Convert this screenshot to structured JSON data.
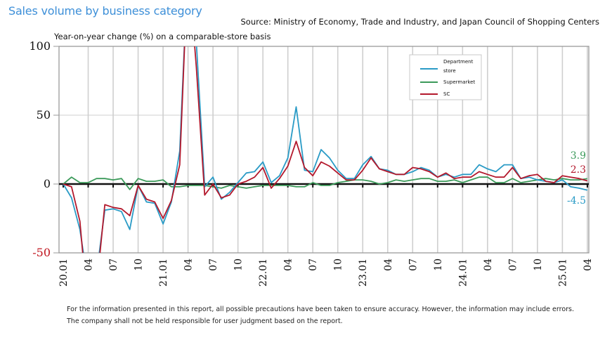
{
  "header": {
    "title": "Sales volume by business category",
    "source": "Source: Ministry of Economy, Trade and Industry, and Japan Council of Shopping Centers",
    "y_caption": "Year-on-year change (%) on a comparable-store basis"
  },
  "footnote": {
    "line1": "For the information presented in this report, all possible precautions have been taken to ensure accuracy. However, the information may include errors.",
    "line2": "The company shall not be held responsible for user judgment based on the report."
  },
  "chart_data": {
    "type": "line",
    "title": "Sales volume by business category",
    "ylabel": "Year-on-year change (%) on a comparable-store basis",
    "xlabel": "",
    "ylim": [
      -50,
      100
    ],
    "yticks": [
      {
        "value": 100,
        "label": "100",
        "color": "#111111"
      },
      {
        "value": 50,
        "label": "50",
        "color": "#111111"
      },
      {
        "value": 0,
        "label": "0",
        "color": "#111111"
      },
      {
        "value": -50,
        "label": "-50",
        "color": "#c0141e"
      }
    ],
    "grid": true,
    "legend_position": "top-right",
    "x_tick_labels": [
      "20.01",
      "04",
      "07",
      "10",
      "21.01",
      "04",
      "07",
      "10",
      "22.01",
      "04",
      "07",
      "10",
      "23.01",
      "04",
      "07",
      "10",
      "24.01",
      "04",
      "07",
      "10",
      "25.01",
      "04"
    ],
    "x_tick_every_months": 3,
    "x_start": "2020-01",
    "x_end": "2025-04",
    "series": [
      {
        "name": "Department store",
        "legend_lines": [
          "Department",
          "store"
        ],
        "color": "#2a9bc6",
        "end_label": "-4.5",
        "values": [
          0,
          -10,
          -33,
          -73,
          -65,
          -19,
          -18,
          -20,
          -33,
          -1,
          -13,
          -14,
          -29,
          -13,
          24,
          161,
          103,
          -2,
          5,
          -11,
          -6,
          1,
          8,
          9,
          16,
          1,
          6,
          19,
          56,
          10,
          9,
          25,
          19,
          10,
          4,
          4,
          14,
          20,
          11,
          10,
          7,
          7,
          9,
          12,
          10,
          5,
          7,
          5,
          7,
          7,
          14,
          11,
          9,
          14,
          14,
          4,
          5,
          3,
          2,
          1,
          3,
          -2,
          -3,
          -4.5
        ]
      },
      {
        "name": "Supermarket",
        "legend_lines": [
          "Supermarket"
        ],
        "color": "#3c9a5a",
        "end_label": "3.9",
        "values": [
          0,
          5,
          1,
          1,
          4,
          4,
          3,
          4,
          -4,
          4,
          2,
          2,
          3,
          -2,
          -2,
          -1,
          -1,
          -1,
          -2,
          -3,
          -1,
          -2,
          -3,
          -2,
          -1,
          -1,
          -1,
          -1,
          -2,
          -2,
          1,
          -1,
          -1,
          1,
          2,
          3,
          3,
          2,
          0,
          1,
          3,
          2,
          3,
          4,
          4,
          2,
          2,
          3,
          1,
          3,
          5,
          5,
          1,
          1,
          4,
          1,
          2,
          3,
          4,
          3,
          4,
          3,
          3,
          3.9
        ]
      },
      {
        "name": "SC",
        "legend_lines": [
          "SC"
        ],
        "color": "#b3182c",
        "end_label": "2.3",
        "values": [
          0,
          -2,
          -27,
          -95,
          -75,
          -15,
          -17,
          -18,
          -23,
          -1,
          -11,
          -13,
          -25,
          -12,
          14,
          162,
          85,
          -8,
          0,
          -10,
          -8,
          0,
          2,
          5,
          12,
          -3,
          4,
          13,
          31,
          12,
          6,
          16,
          13,
          8,
          3,
          3,
          10,
          19,
          11,
          9,
          7,
          7,
          12,
          11,
          9,
          5,
          8,
          4,
          5,
          5,
          9,
          7,
          5,
          5,
          12,
          4,
          6,
          7,
          2,
          1,
          6,
          5,
          4,
          2.3
        ]
      }
    ]
  }
}
